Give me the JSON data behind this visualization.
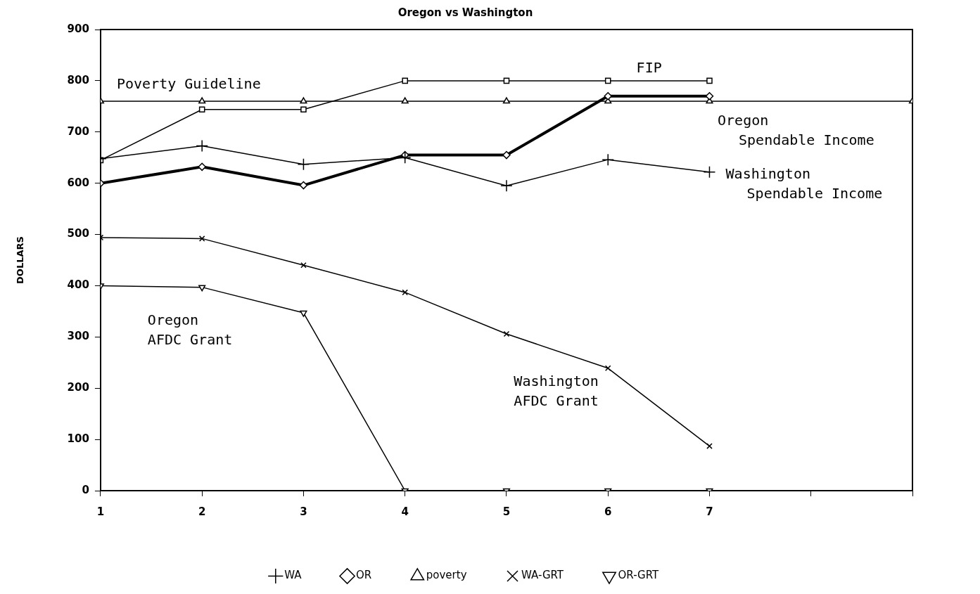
{
  "chart_data": {
    "type": "line",
    "title": "Oregon vs Washington",
    "ylabel": "DOLLARS",
    "x": [
      1,
      2,
      3,
      4,
      5,
      6,
      7
    ],
    "xlim": [
      1,
      9
    ],
    "xticks": [
      1,
      2,
      3,
      4,
      5,
      6,
      7,
      {
        "value": 8,
        "label": null
      },
      {
        "value": 9,
        "label": null
      }
    ],
    "ylim": [
      0,
      900
    ],
    "yticks": [
      0,
      100,
      200,
      300,
      400,
      500,
      600,
      700,
      800,
      900
    ],
    "grid": false,
    "legend": "bottom",
    "line_style": "solid",
    "series": [
      {
        "name": "WA",
        "color": "#000000",
        "marker": "cross",
        "values": [
          648,
          673,
          637,
          650,
          595,
          646,
          622
        ]
      },
      {
        "name": "OR",
        "color": "#000000",
        "marker": "diamond",
        "values": [
          600,
          632,
          596,
          655,
          655,
          770,
          770
        ]
      },
      {
        "name": "poverty",
        "color": "#000000",
        "marker": "triangle",
        "x": [
          1,
          2,
          3,
          4,
          5,
          6,
          7,
          9
        ],
        "values": [
          760,
          760,
          760,
          760,
          760,
          760,
          760,
          760
        ]
      },
      {
        "color": "#000000",
        "marker": "square",
        "values": [
          645,
          744,
          744,
          800,
          800,
          800,
          800
        ]
      },
      {
        "name": "WA-GRT",
        "color": "#000000",
        "marker": "cross",
        "values": [
          494,
          492,
          440,
          387,
          306,
          239,
          87
        ]
      },
      {
        "name": "OR-GRT",
        "color": "#000000",
        "marker": "triangle-down",
        "values": [
          400,
          397,
          347,
          0,
          0,
          0,
          0
        ]
      }
    ],
    "annotations": [
      "Poverty Guideline",
      "FIP",
      "Oregon\nSpendable Income",
      "Washington\nSpendable Income",
      "Oregon\nAFDC Grant",
      "Washington\nAFDC Grant"
    ]
  }
}
